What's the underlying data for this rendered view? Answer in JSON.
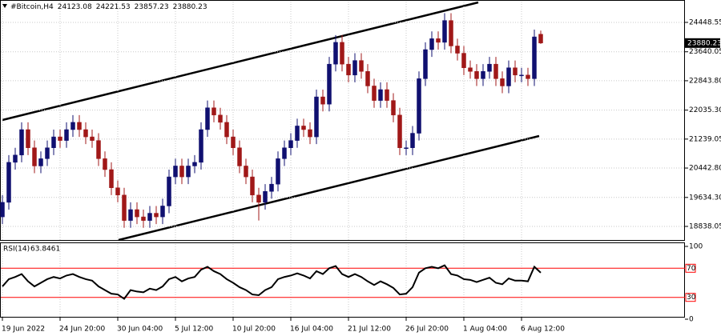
{
  "chart_data": [
    {
      "type": "candlestick",
      "title": "#Bitcoin,H4",
      "categories": [
        "19 Jun 2022",
        null,
        null,
        null,
        null,
        null,
        null,
        null,
        null,
        "24 Jun 20:00",
        null,
        null,
        null,
        null,
        null,
        null,
        null,
        null,
        "30 Jun 04:00",
        null,
        null,
        null,
        null,
        null,
        null,
        null,
        null,
        "5 Jul 12:00",
        null,
        null,
        null,
        null,
        null,
        null,
        null,
        null,
        "10 Jul 20:00",
        null,
        null,
        null,
        null,
        null,
        null,
        null,
        null,
        "16 Jul 04:00",
        null,
        null,
        null,
        null,
        null,
        null,
        null,
        null,
        "21 Jul 12:00",
        null,
        null,
        null,
        null,
        null,
        null,
        null,
        null,
        "26 Jul 20:00",
        null,
        null,
        null,
        null,
        null,
        null,
        null,
        null,
        "1 Aug 04:00",
        null,
        null,
        null,
        null,
        null,
        null,
        null,
        null,
        "6 Aug 12:00",
        null,
        null,
        null
      ],
      "open": [
        19100,
        19500,
        20600,
        20800,
        21500,
        21000,
        20500,
        20700,
        21000,
        21300,
        21200,
        21500,
        21700,
        21500,
        21300,
        21200,
        20700,
        20400,
        19900,
        19700,
        19000,
        19300,
        19100,
        19000,
        19200,
        19100,
        19400,
        20200,
        20500,
        20200,
        20500,
        20600,
        21500,
        22100,
        21900,
        21700,
        21300,
        21000,
        20500,
        20200,
        19700,
        19500,
        19800,
        20000,
        20700,
        21000,
        21200,
        21600,
        21500,
        21300,
        22400,
        22200,
        23300,
        23900,
        23300,
        23000,
        23400,
        23100,
        22700,
        22300,
        22600,
        22300,
        21900,
        21000,
        21000,
        21400,
        22900,
        23700,
        24000,
        23900,
        24500,
        23800,
        23600,
        23200,
        23100,
        22900,
        23100,
        23300,
        22900,
        22700,
        23200,
        23000,
        23000,
        22900,
        24123.08
      ],
      "high": [
        19700,
        20800,
        21000,
        21700,
        21700,
        21200,
        20900,
        21200,
        21500,
        21500,
        21700,
        21900,
        21900,
        21700,
        21500,
        21400,
        20900,
        20600,
        20100,
        19900,
        19500,
        19500,
        19300,
        19400,
        19400,
        19600,
        20400,
        20700,
        20700,
        20700,
        20800,
        21700,
        22300,
        22300,
        22100,
        21900,
        21500,
        21200,
        20700,
        20400,
        19900,
        20000,
        20200,
        20900,
        21200,
        21400,
        21800,
        21800,
        21700,
        22600,
        22600,
        23500,
        24100,
        24100,
        23500,
        23600,
        23600,
        23300,
        22900,
        22800,
        22800,
        22500,
        22100,
        21200,
        21600,
        23100,
        23900,
        24200,
        24200,
        24700,
        24700,
        24000,
        23800,
        23400,
        23300,
        23300,
        23500,
        23500,
        23100,
        23400,
        23400,
        23200,
        23200,
        24250,
        24221.53
      ],
      "low": [
        18900,
        19300,
        20400,
        20600,
        20800,
        20300,
        20300,
        20500,
        20800,
        21000,
        21000,
        21300,
        21300,
        21100,
        21000,
        20500,
        20200,
        19700,
        19500,
        18800,
        18800,
        18900,
        18800,
        18800,
        18900,
        18900,
        19200,
        20000,
        20000,
        20000,
        20300,
        20400,
        21300,
        21700,
        21500,
        21100,
        20800,
        20300,
        20000,
        19500,
        19000,
        19300,
        19600,
        19800,
        20500,
        20800,
        21000,
        21300,
        21100,
        21100,
        22000,
        22000,
        23100,
        23100,
        22800,
        22800,
        22900,
        22500,
        22100,
        22100,
        22100,
        21700,
        20800,
        20800,
        20800,
        21200,
        22700,
        23500,
        23700,
        23700,
        23600,
        23400,
        23000,
        22900,
        22700,
        22700,
        22900,
        22700,
        22500,
        22500,
        22800,
        22800,
        22700,
        22700,
        23857.23
      ],
      "close": [
        19500,
        20600,
        20800,
        21500,
        21000,
        20500,
        20700,
        21000,
        21300,
        21200,
        21500,
        21700,
        21500,
        21300,
        21200,
        20700,
        20400,
        19900,
        19700,
        19000,
        19300,
        19100,
        19000,
        19200,
        19100,
        19400,
        20200,
        20500,
        20200,
        20500,
        20600,
        21500,
        22100,
        21900,
        21700,
        21300,
        21000,
        20500,
        20200,
        19700,
        19500,
        19800,
        20000,
        20700,
        21000,
        21200,
        21600,
        21500,
        21300,
        22400,
        22200,
        23300,
        23900,
        23300,
        23000,
        23400,
        23100,
        22700,
        22300,
        22600,
        22300,
        21900,
        21000,
        21000,
        21400,
        22900,
        23700,
        24000,
        23900,
        24500,
        23800,
        23600,
        23200,
        23100,
        22900,
        23100,
        23300,
        22900,
        22700,
        23200,
        23000,
        23000,
        22900,
        24050,
        23880.23
      ],
      "up_color": "#101070",
      "down_color": "#a01818",
      "ylim": [
        18464,
        25020
      ],
      "yticks": [
        {
          "value": 18838.05,
          "label": "18838.05"
        },
        {
          "value": 19634.3,
          "label": "19634.30"
        },
        {
          "value": 20442.8,
          "label": "20442.80"
        },
        {
          "value": 21239.05,
          "label": "21239.05"
        },
        {
          "value": 22035.3,
          "label": "22035.30"
        },
        {
          "value": 22843.8,
          "label": "22843.80"
        },
        {
          "value": 23640.05,
          "label": "23640.05"
        },
        {
          "value": 24448.55,
          "label": "24448.55"
        }
      ],
      "grid": true
    },
    {
      "type": "line",
      "series": [
        {
          "name": "RSI(14)",
          "color": "#000000",
          "values": [
            45,
            55,
            58,
            62,
            52,
            45,
            50,
            55,
            58,
            56,
            60,
            62,
            58,
            55,
            53,
            45,
            40,
            35,
            34,
            28,
            40,
            38,
            37,
            42,
            40,
            45,
            55,
            58,
            52,
            56,
            58,
            68,
            72,
            66,
            62,
            55,
            50,
            44,
            40,
            34,
            33,
            40,
            44,
            55,
            58,
            60,
            63,
            60,
            56,
            66,
            62,
            70,
            73,
            62,
            58,
            62,
            58,
            52,
            47,
            52,
            48,
            43,
            34,
            35,
            44,
            64,
            70,
            72,
            70,
            74,
            62,
            60,
            55,
            54,
            51,
            54,
            57,
            50,
            48,
            56,
            53,
            53,
            52,
            72,
            63.8461
          ]
        }
      ],
      "ylim": [
        0,
        100
      ],
      "yticks": [
        0,
        100
      ],
      "levels": [
        70,
        30
      ],
      "level_color": "#ff0000"
    }
  ]
}
